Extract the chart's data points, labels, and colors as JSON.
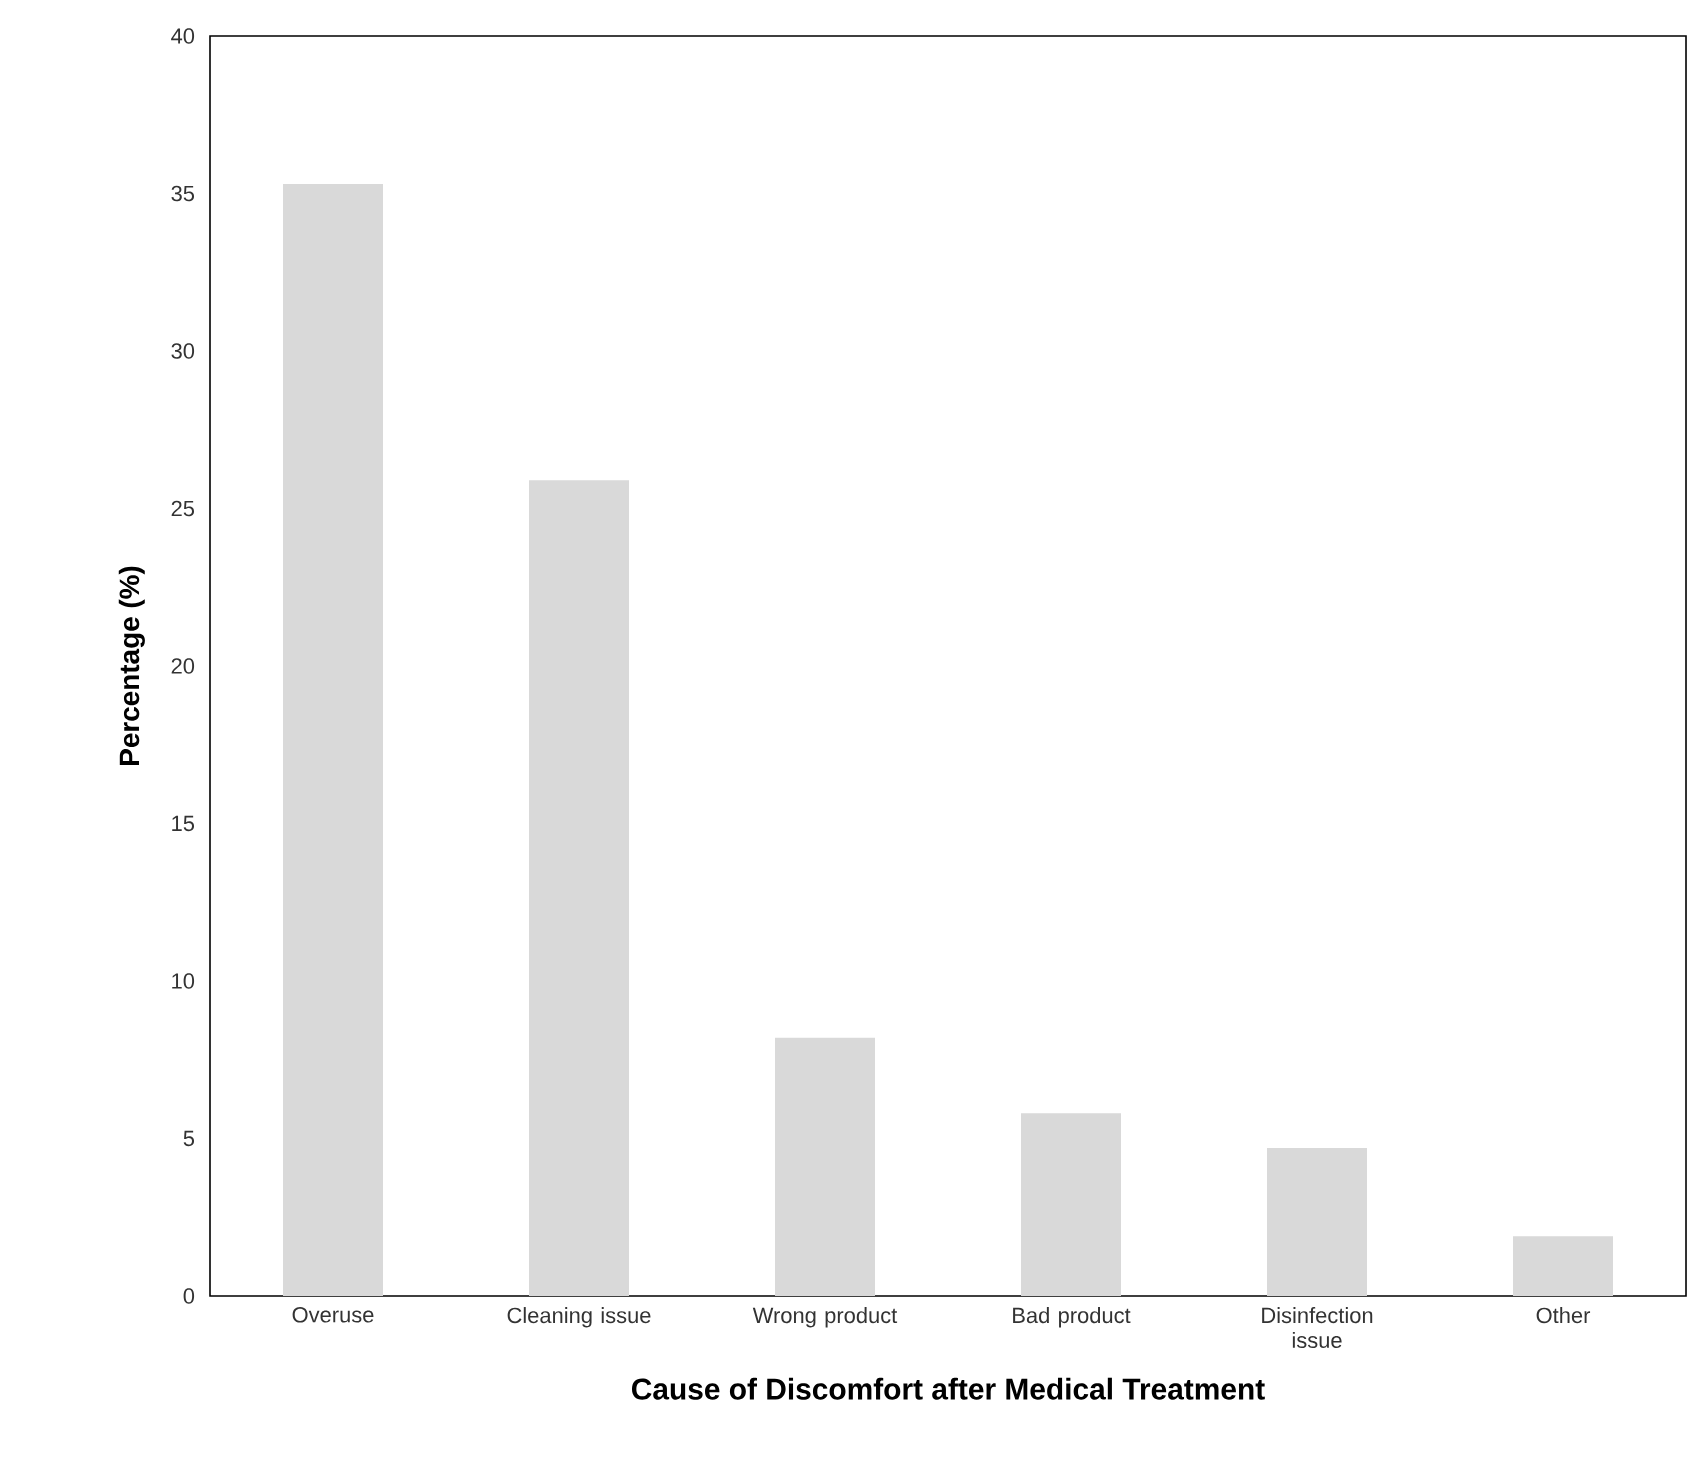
{
  "chart_data": {
    "type": "bar",
    "xlabel": "Cause of  Discomfort after Medical Treatment",
    "ylabel": "Percentage (%)",
    "categories": [
      "Overuse",
      "Cleaning issue",
      "Wrong product",
      "Bad product",
      "Disinfection issue",
      "Other"
    ],
    "values": [
      35.3,
      25.9,
      8.2,
      5.8,
      4.7,
      1.9
    ],
    "color": "#d9d9d9",
    "ylim": [
      0,
      40
    ],
    "yticks": [
      0,
      5,
      10,
      15,
      20,
      25,
      30,
      35,
      40
    ],
    "grid": false
  }
}
